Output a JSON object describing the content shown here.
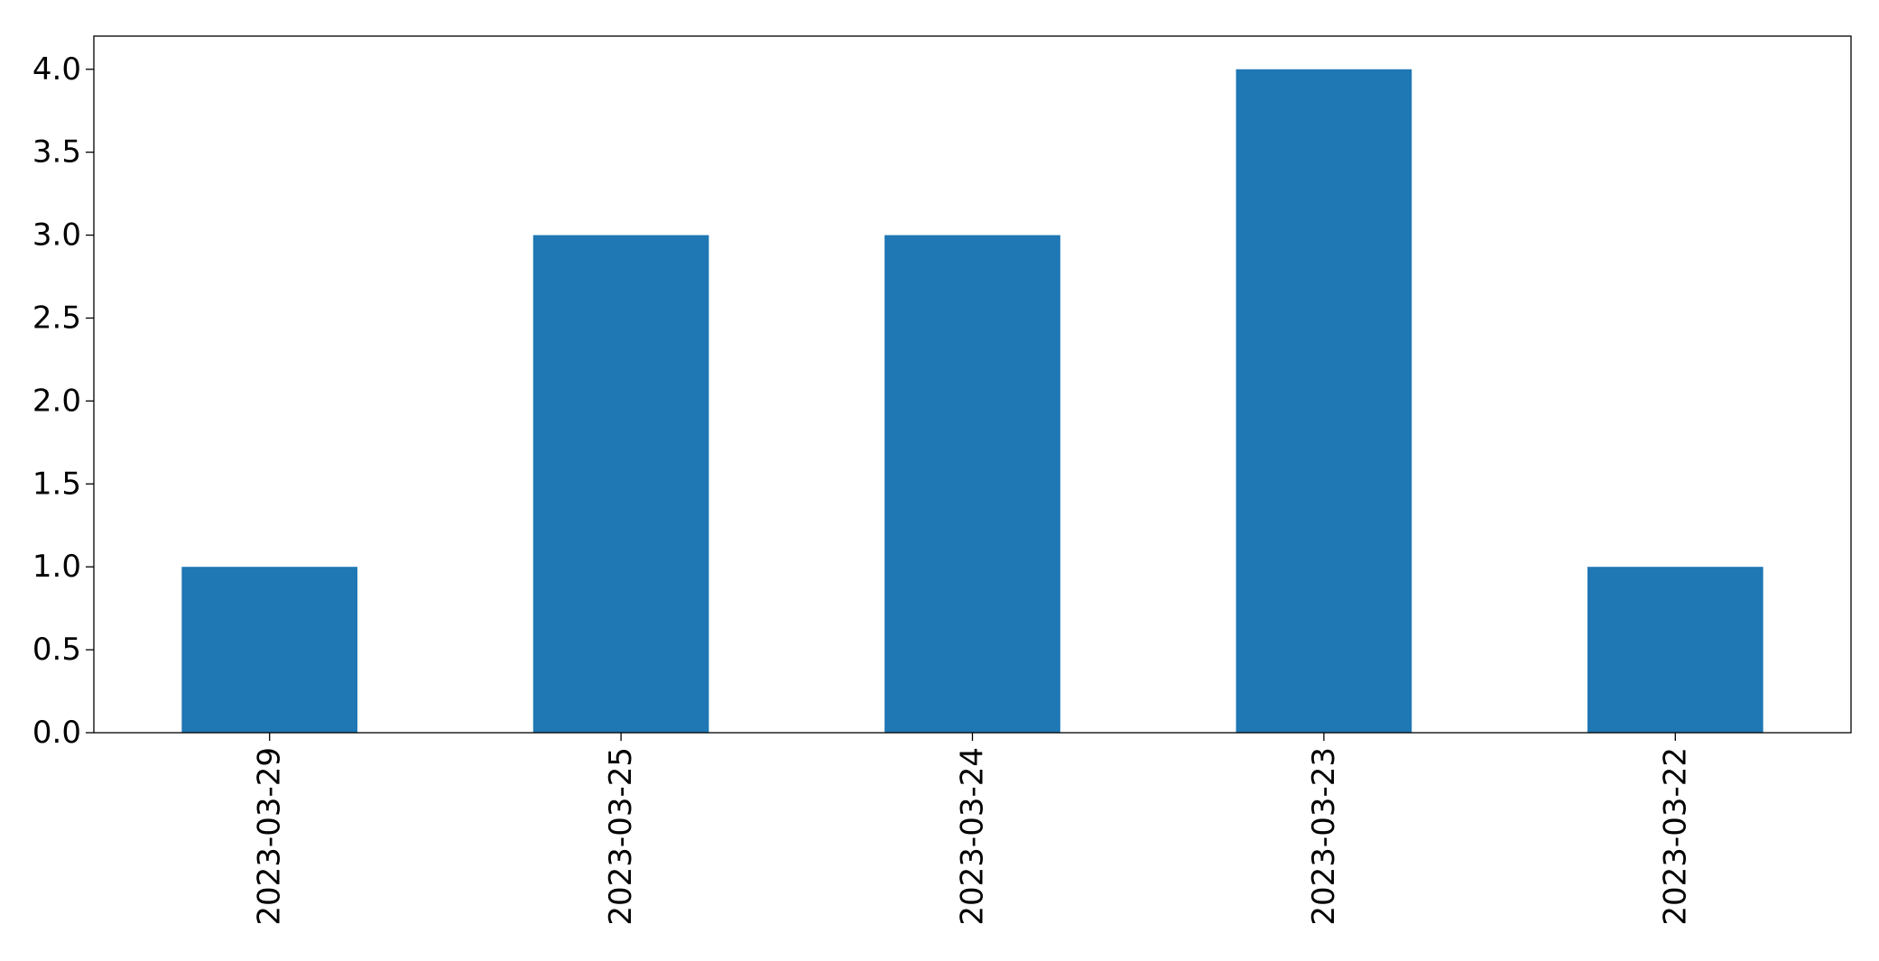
{
  "chart_data": {
    "type": "bar",
    "title": "",
    "xlabel": "",
    "ylabel": "",
    "categories": [
      "2023-03-29",
      "2023-03-25",
      "2023-03-24",
      "2023-03-23",
      "2023-03-22"
    ],
    "values": [
      1,
      3,
      3,
      4,
      1
    ],
    "ylim": [
      0,
      4.2
    ],
    "yticks": [
      "0.0",
      "0.5",
      "1.0",
      "1.5",
      "2.0",
      "2.5",
      "3.0",
      "3.5",
      "4.0"
    ],
    "bar_color": "#1f77b4",
    "grid": false,
    "legend": "none",
    "x_tick_rotation": "vertical"
  }
}
